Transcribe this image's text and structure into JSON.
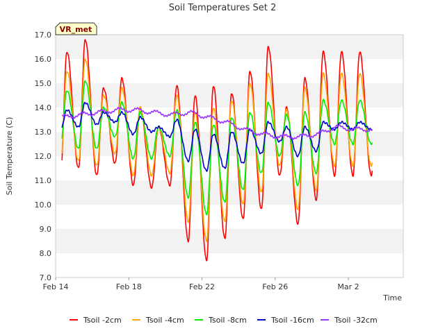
{
  "chart_data": {
    "type": "line",
    "title": "Soil Temperatures Set 2",
    "badge": "VR_met",
    "xlabel": "Time",
    "ylabel": "Soil Temperature (C)",
    "xlim": [
      "Feb 14",
      "Mar 5"
    ],
    "ylim": [
      7.0,
      17.0
    ],
    "y_ticks": [
      "7.0",
      "8.0",
      "9.0",
      "10.0",
      "11.0",
      "12.0",
      "13.0",
      "14.0",
      "15.0",
      "16.0",
      "17.0"
    ],
    "x_ticks": [
      "Feb 14",
      "Feb 18",
      "Feb 22",
      "Feb 26",
      "Mar 2"
    ],
    "grid": "alternating horizontal bands",
    "legend_position": "bottom",
    "series": [
      {
        "name": "Tsoil -2cm",
        "color": "#ff0000",
        "peaks": [
          16.4,
          16.3,
          16.8,
          14.8,
          15.2,
          14.0,
          13.2,
          14.9,
          14.5,
          14.9,
          14.6,
          15.5,
          16.5,
          14.0,
          15.2,
          16.3
        ],
        "troughs": [
          11.2,
          10.9,
          11.5,
          11.2,
          11.7,
          10.8,
          10.7,
          10.8,
          8.5,
          7.7,
          8.6,
          9.4,
          9.8,
          11.2,
          9.2,
          10.2,
          11.2
        ]
      },
      {
        "name": "Tsoil -4cm",
        "color": "#ffa500",
        "peaks": [
          15.6,
          15.5,
          16.0,
          14.5,
          14.8,
          14.0,
          13.2,
          14.5,
          13.8,
          14.0,
          14.3,
          15.0,
          15.4,
          13.9,
          14.8,
          15.4
        ],
        "troughs": [
          11.6,
          11.4,
          11.8,
          11.6,
          12.1,
          11.2,
          11.2,
          11.3,
          9.3,
          8.5,
          9.3,
          10.0,
          10.5,
          11.6,
          9.8,
          10.6,
          11.6
        ]
      },
      {
        "name": "Tsoil -8cm",
        "color": "#00ee00",
        "peaks": [
          14.8,
          14.7,
          15.1,
          14.0,
          14.2,
          13.8,
          13.2,
          13.9,
          13.4,
          13.3,
          13.6,
          13.8,
          14.2,
          13.7,
          13.8,
          14.3
        ],
        "troughs": [
          12.5,
          12.3,
          12.3,
          12.3,
          12.8,
          11.9,
          11.9,
          12.0,
          10.3,
          9.6,
          10.1,
          10.6,
          11.3,
          12.0,
          10.8,
          11.3,
          12.5
        ]
      },
      {
        "name": "Tsoil -16cm",
        "color": "#0000cc",
        "peaks": [
          14.0,
          13.9,
          14.2,
          13.8,
          13.8,
          13.6,
          13.2,
          13.5,
          13.1,
          12.9,
          13.0,
          13.1,
          13.4,
          13.2,
          13.2,
          13.4
        ],
        "troughs": [
          12.9,
          13.0,
          13.2,
          13.3,
          13.4,
          12.9,
          13.0,
          12.8,
          11.8,
          11.4,
          11.5,
          11.7,
          12.1,
          12.6,
          12.0,
          12.2,
          13.1
        ]
      },
      {
        "name": "Tsoil -32cm",
        "color": "#9933ff",
        "points": [
          13.6,
          13.7,
          13.8,
          13.9,
          13.9,
          13.8,
          13.7,
          13.8,
          13.6,
          13.4,
          13.1,
          12.9,
          12.8,
          12.8,
          12.9,
          13.2,
          13.1,
          13.1
        ]
      }
    ]
  }
}
